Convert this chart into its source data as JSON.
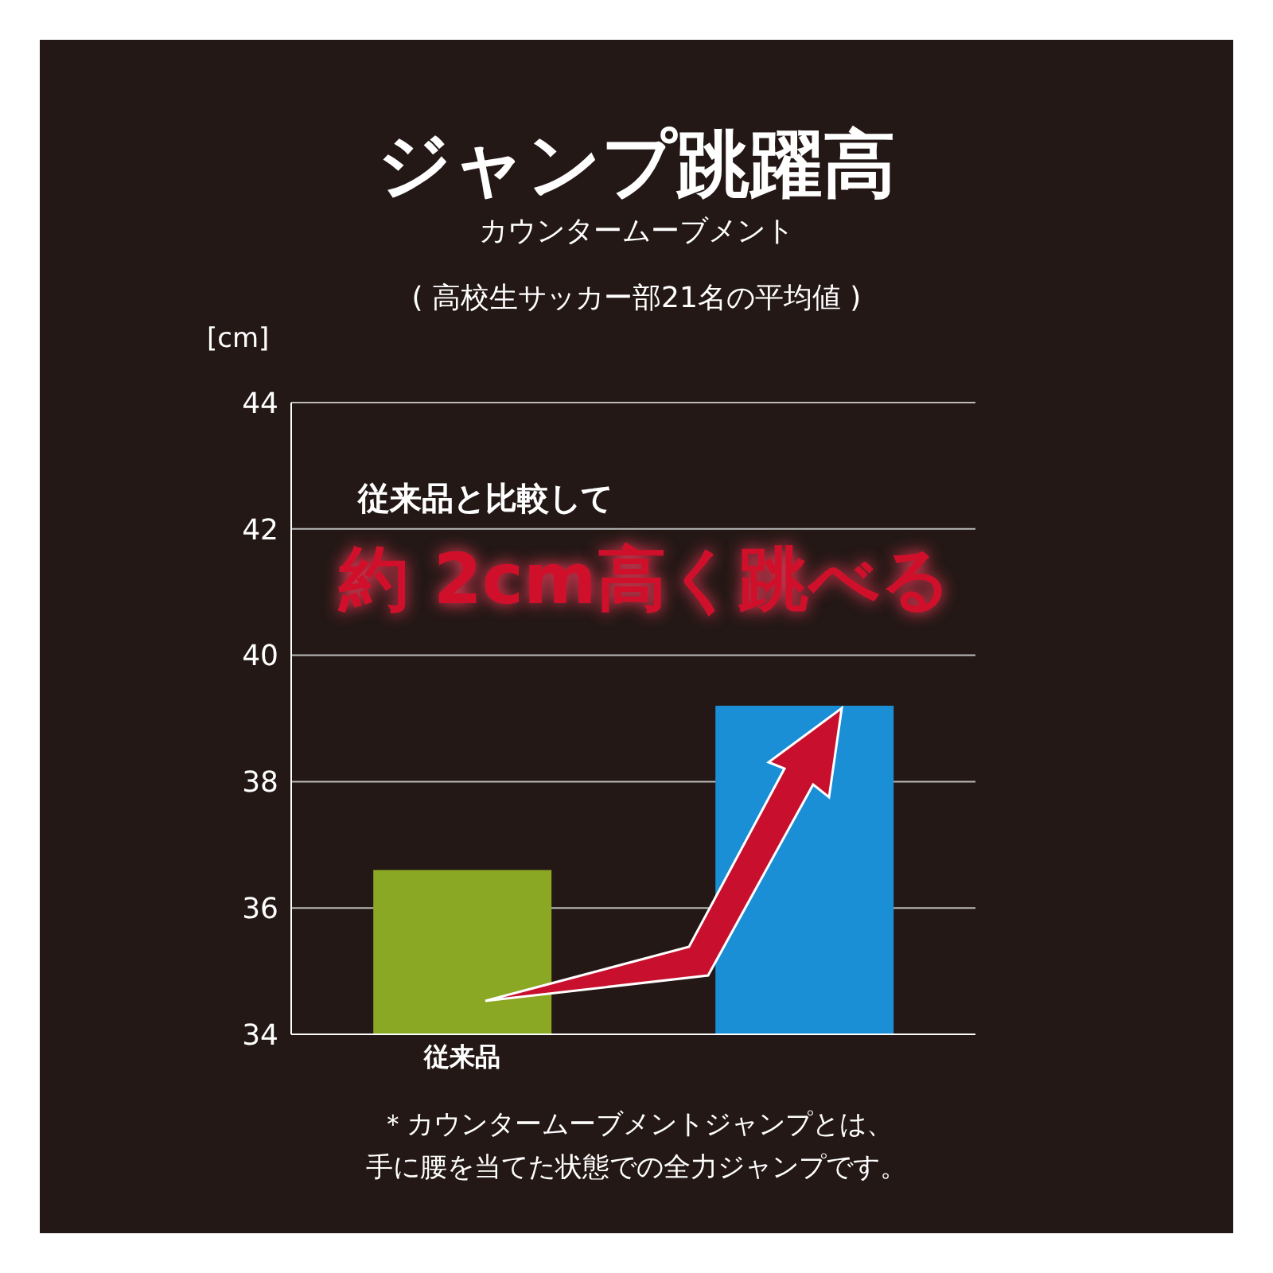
{
  "chart_data": {
    "type": "bar",
    "title": "ジャンプ跳躍高",
    "subtitle": "カウンタームーブメント\n( 高校生サッカー部21名の平均値 )",
    "ylabel": "[cm]",
    "categories": [
      "従来品",
      null
    ],
    "values": [
      36.6,
      39.2
    ],
    "colors": [
      "#8aa823",
      "#1a8fd6"
    ],
    "ylim": [
      34,
      44
    ],
    "yticks": [
      34,
      36,
      38,
      40,
      42,
      44
    ],
    "grid": "y",
    "annotations": [
      "従来品と比較して",
      "約 2cm高く跳べる",
      "＊カウンタームーブメントジャンプとは、",
      "手に腰を当てた状態での全力ジャンプです。"
    ]
  }
}
